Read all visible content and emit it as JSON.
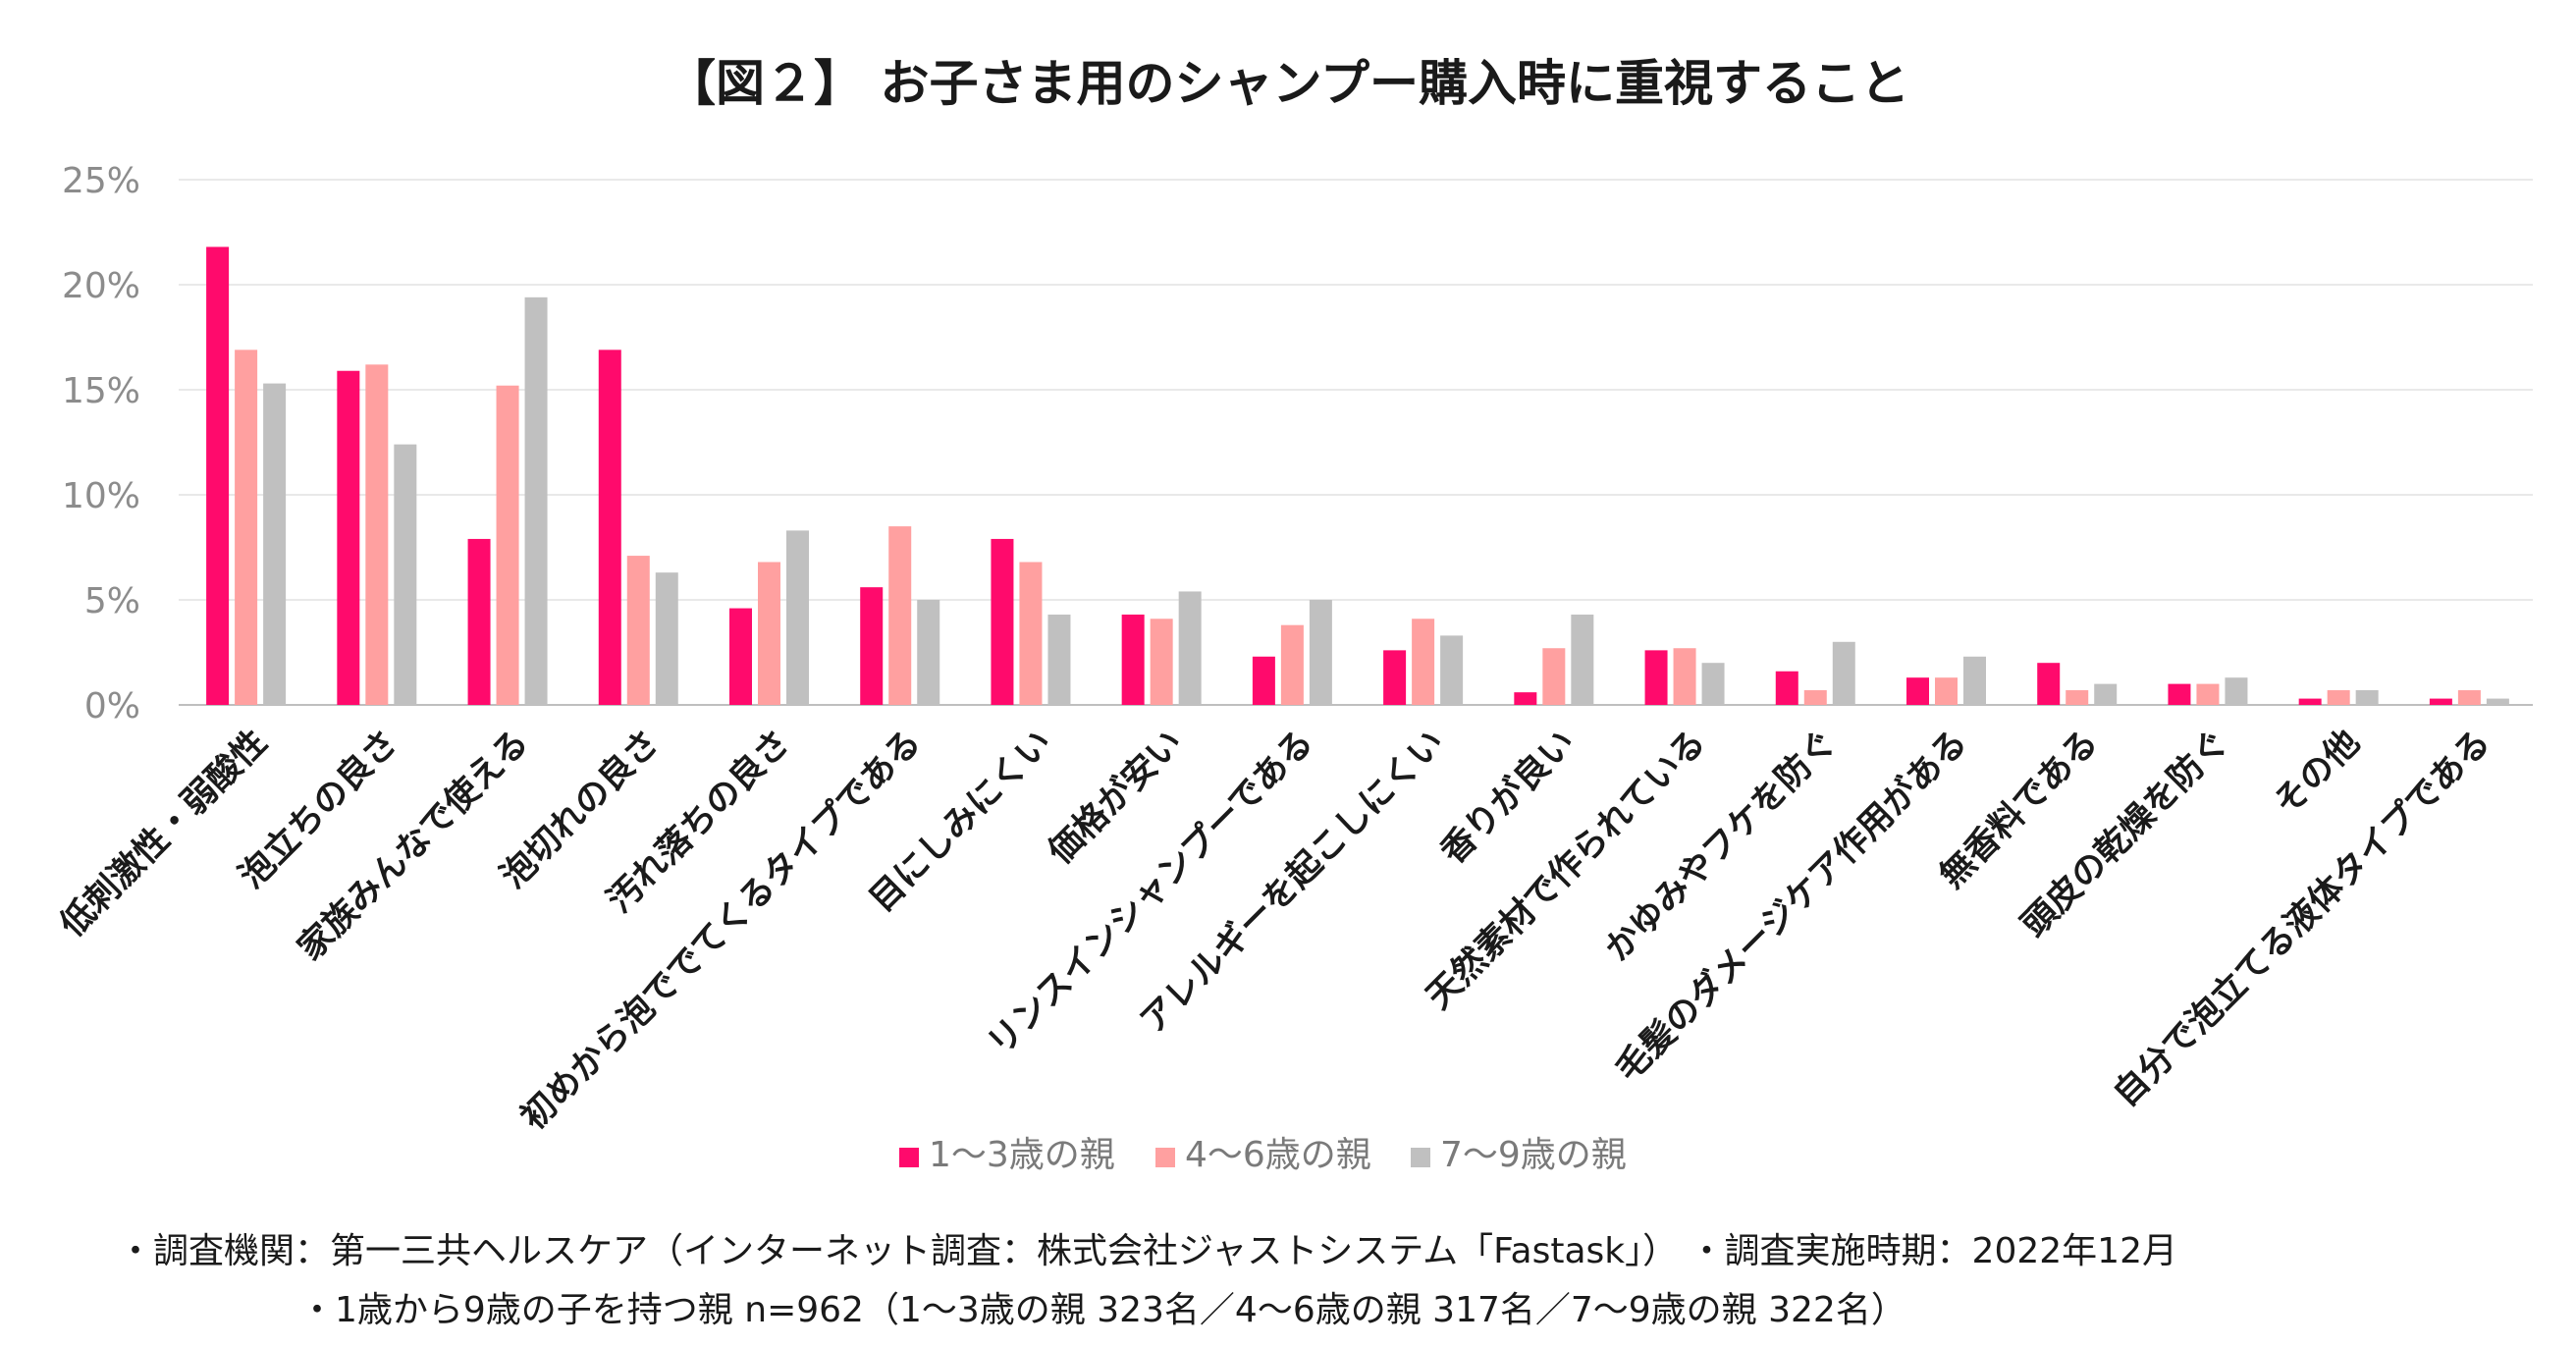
{
  "chart_data": {
    "type": "bar",
    "title": "【図２】 お子さま用のシャンプー購入時に重視すること",
    "xlabel": "",
    "ylabel": "",
    "ylim": [
      0,
      25
    ],
    "yticks": [
      "0%",
      "5%",
      "10%",
      "15%",
      "20%",
      "25%"
    ],
    "grid": true,
    "legend_position": "bottom",
    "categories": [
      "低刺激性・弱酸性",
      "泡立ちの良さ",
      "家族みんなで使える",
      "泡切れの良さ",
      "汚れ落ちの良さ",
      "初めから泡ででてくるタイプである",
      "目にしみにくい",
      "価格が安い",
      "リンスインシャンプーである",
      "アレルギーを起こしにくい",
      "香りが良い",
      "天然素材で作られている",
      "かゆみやフケを防ぐ",
      "毛髪のダメージケア作用がある",
      "無香料である",
      "頭皮の乾燥を防ぐ",
      "その他",
      "自分で泡立てる液体タイプである"
    ],
    "series": [
      {
        "name": "1～3歳の親",
        "color": "#ff0a6c",
        "values": [
          21.8,
          15.9,
          7.9,
          16.9,
          4.6,
          5.6,
          7.9,
          4.3,
          2.3,
          2.6,
          0.6,
          2.6,
          1.6,
          1.3,
          2.0,
          1.0,
          0.3,
          0.3
        ]
      },
      {
        "name": "4～6歳の親",
        "color": "#ffa0a0",
        "values": [
          16.9,
          16.2,
          15.2,
          7.1,
          6.8,
          8.5,
          6.8,
          4.1,
          3.8,
          4.1,
          2.7,
          2.7,
          0.7,
          1.3,
          0.7,
          1.0,
          0.7,
          0.7
        ]
      },
      {
        "name": "7～9歳の親",
        "color": "#c0c0c0",
        "values": [
          15.3,
          12.4,
          19.4,
          6.3,
          8.3,
          5.0,
          4.3,
          5.4,
          5.0,
          3.3,
          4.3,
          2.0,
          3.0,
          2.3,
          1.0,
          1.3,
          0.7,
          0.3
        ]
      }
    ]
  },
  "notes": {
    "line1": "・調査機関：第一三共ヘルスケア（インターネット調査：株式会社ジャストシステム「Fastask」） ・調査実施時期：2022年12月",
    "line2": "・1歳から9歳の子を持つ親 n=962（1～3歳の親 323名／4～6歳の親 317名／7～9歳の親 322名）"
  }
}
